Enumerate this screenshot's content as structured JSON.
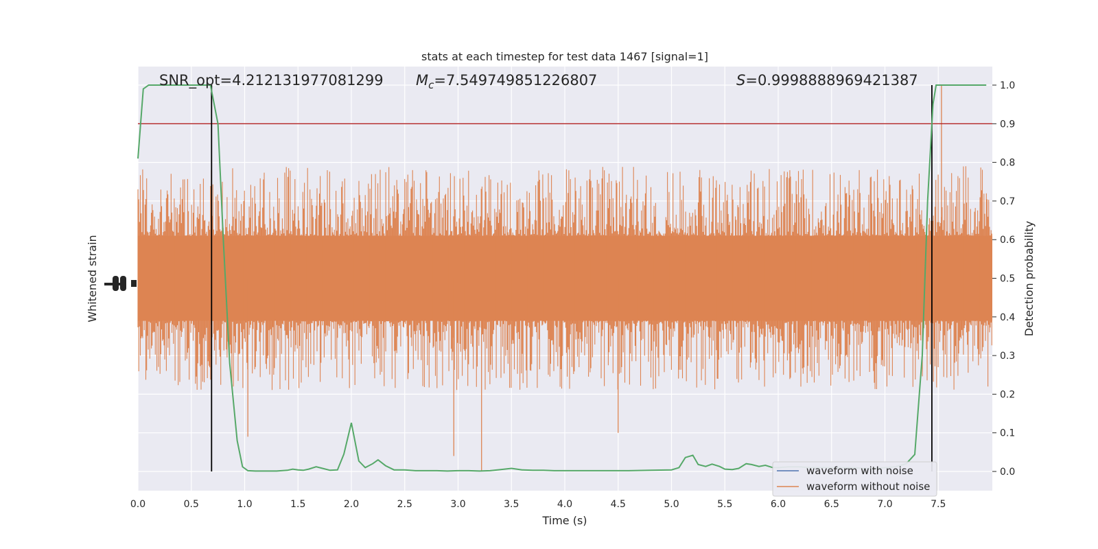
{
  "chart_data": {
    "type": "line",
    "title": "stats at each timestep for test data 1467 [signal=1]",
    "xlabel": "Time (s)",
    "ylabel_left": "Whitened strain",
    "ylabel_right": "Detection probability",
    "xlim": [
      0,
      8.0
    ],
    "ylim_right": [
      -0.05,
      1.05
    ],
    "x_ticks": [
      "0.0",
      "0.5",
      "1.0",
      "1.5",
      "2.0",
      "2.5",
      "3.0",
      "3.5",
      "4.0",
      "4.5",
      "5.0",
      "5.5",
      "6.0",
      "6.5",
      "7.0",
      "7.5"
    ],
    "y_right_ticks": [
      "0.0",
      "0.1",
      "0.2",
      "0.3",
      "0.4",
      "0.5",
      "0.6",
      "0.7",
      "0.8",
      "0.9",
      "1.0"
    ],
    "grid": true,
    "legend_position": "lower-right",
    "annotations": {
      "snr": "SNR_opt=4.212131977081299",
      "mc_symbol": "M",
      "mc_sub": "c",
      "mc_value": "=7.549749851226807",
      "s_symbol": "S",
      "s_value": "=0.9998888969421387"
    },
    "threshold": 0.9,
    "vlines_x": [
      0.69,
      7.44
    ],
    "series": [
      {
        "name": "waveform with noise",
        "color": "#4c72b0"
      },
      {
        "name": "waveform without noise",
        "color": "#dd8452",
        "band_center": 0.5,
        "band_core_half": 0.11,
        "band_max_dev": 0.29
      },
      {
        "color": "#55a868",
        "x": [
          0.0,
          0.05,
          0.1,
          0.2,
          0.3,
          0.4,
          0.5,
          0.6,
          0.68,
          0.75,
          0.8,
          0.86,
          0.93,
          0.98,
          1.03,
          1.1,
          1.2,
          1.3,
          1.4,
          1.45,
          1.5,
          1.55,
          1.6,
          1.67,
          1.73,
          1.8,
          1.87,
          1.93,
          2.0,
          2.07,
          2.13,
          2.2,
          2.25,
          2.32,
          2.4,
          2.5,
          2.6,
          2.7,
          2.8,
          2.9,
          3.0,
          3.1,
          3.2,
          3.3,
          3.4,
          3.5,
          3.6,
          3.7,
          3.8,
          3.9,
          4.0,
          4.2,
          4.4,
          4.6,
          4.8,
          5.0,
          5.07,
          5.13,
          5.2,
          5.25,
          5.32,
          5.38,
          5.45,
          5.5,
          5.57,
          5.63,
          5.7,
          5.75,
          5.82,
          5.88,
          5.95,
          6.0,
          6.1,
          6.2,
          6.3,
          6.4,
          6.5,
          6.6,
          6.7,
          6.8,
          6.9,
          7.0,
          7.1,
          7.2,
          7.28,
          7.35,
          7.4,
          7.45,
          7.48,
          7.52,
          7.58,
          7.65,
          7.75,
          7.85,
          7.95
        ],
        "y": [
          0.81,
          0.99,
          1.0,
          1.0,
          1.0,
          1.0,
          1.0,
          1.0,
          1.0,
          0.9,
          0.6,
          0.28,
          0.08,
          0.012,
          0.002,
          0.001,
          0.001,
          0.001,
          0.003,
          0.006,
          0.004,
          0.003,
          0.006,
          0.012,
          0.008,
          0.003,
          0.004,
          0.045,
          0.126,
          0.027,
          0.01,
          0.02,
          0.03,
          0.015,
          0.004,
          0.004,
          0.002,
          0.002,
          0.002,
          0.001,
          0.002,
          0.002,
          0.001,
          0.002,
          0.005,
          0.008,
          0.004,
          0.003,
          0.003,
          0.002,
          0.002,
          0.002,
          0.002,
          0.002,
          0.003,
          0.004,
          0.01,
          0.036,
          0.042,
          0.018,
          0.013,
          0.019,
          0.013,
          0.006,
          0.005,
          0.008,
          0.02,
          0.018,
          0.013,
          0.016,
          0.01,
          0.01,
          0.012,
          0.012,
          0.01,
          0.01,
          0.01,
          0.01,
          0.01,
          0.008,
          0.008,
          0.01,
          0.012,
          0.02,
          0.044,
          0.3,
          0.7,
          0.95,
          1.0,
          1.0,
          1.0,
          1.0,
          1.0,
          1.0,
          1.0
        ]
      }
    ]
  }
}
